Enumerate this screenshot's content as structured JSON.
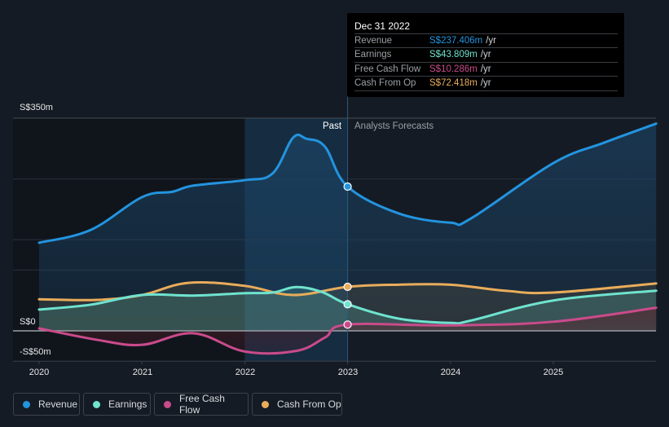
{
  "tooltip": {
    "date": "Dec 31 2022",
    "rows": [
      {
        "label": "Revenue",
        "value": "S$237.406m",
        "unit": "/yr",
        "color": "#2394df"
      },
      {
        "label": "Earnings",
        "value": "S$43.809m",
        "unit": "/yr",
        "color": "#6fe3cf"
      },
      {
        "label": "Free Cash Flow",
        "value": "S$10.286m",
        "unit": "/yr",
        "color": "#c94b8b"
      },
      {
        "label": "Cash From Op",
        "value": "S$72.418m",
        "unit": "/yr",
        "color": "#e9ac5b"
      }
    ]
  },
  "sections": {
    "past": "Past",
    "forecast": "Analysts Forecasts"
  },
  "legend": [
    {
      "label": "Revenue",
      "color": "#2394df"
    },
    {
      "label": "Earnings",
      "color": "#6fe3cf"
    },
    {
      "label": "Free Cash Flow",
      "color": "#c94b8b"
    },
    {
      "label": "Cash From Op",
      "color": "#e9ac5b"
    }
  ],
  "chart_data": {
    "type": "line",
    "title": "",
    "xlabel": "",
    "ylabel": "",
    "currency": "S$",
    "units": "m",
    "y_tick_labels": [
      "S$350m",
      "S$0",
      "-S$50m"
    ],
    "y_ticks": [
      350,
      0,
      -50
    ],
    "ylim": [
      -50,
      350
    ],
    "xlim": [
      2020,
      2026
    ],
    "x_tick_labels": [
      "2020",
      "2021",
      "2022",
      "2023",
      "2024",
      "2025"
    ],
    "x_ticks": [
      2020,
      2021,
      2022,
      2023,
      2024,
      2025
    ],
    "past_forecast_split": 2023,
    "highlight_start": 2022,
    "highlight_x": 2023,
    "grid": true,
    "legend_position": "bottom-left",
    "series": [
      {
        "name": "Revenue",
        "color": "#2394df",
        "x": [
          2020,
          2020.5,
          2021,
          2021.3,
          2021.5,
          2022,
          2022.27,
          2022.47,
          2022.6,
          2022.78,
          2023,
          2023.5,
          2024,
          2024.2,
          2025,
          2025.5,
          2026
        ],
        "y": [
          145,
          166,
          220,
          229,
          239,
          248,
          259,
          318,
          316,
          303,
          237.4,
          193,
          178,
          185,
          276,
          310,
          341
        ]
      },
      {
        "name": "Earnings",
        "color": "#6fe3cf",
        "x": [
          2020,
          2020.5,
          2021,
          2021.5,
          2022,
          2022.27,
          2022.5,
          2022.75,
          2023,
          2023.5,
          2024,
          2024.2,
          2025,
          2026
        ],
        "y": [
          35,
          43,
          59,
          58,
          62,
          63,
          72,
          64,
          43.8,
          20,
          13,
          17,
          50,
          66
        ]
      },
      {
        "name": "Free Cash Flow",
        "color": "#c94b8b",
        "x": [
          2020,
          2020.57,
          2021,
          2021.5,
          2022,
          2022.5,
          2022.78,
          2023,
          2024,
          2025,
          2026
        ],
        "y": [
          4,
          -15,
          -23,
          -4,
          -34,
          -33,
          -11,
          10.3,
          9,
          15,
          38
        ]
      },
      {
        "name": "Cash From Op",
        "color": "#e9ac5b",
        "x": [
          2020,
          2020.57,
          2021,
          2021.45,
          2022,
          2022.47,
          2023,
          2023.5,
          2024,
          2024.53,
          2025,
          2026
        ],
        "y": [
          52,
          51,
          59,
          79,
          74,
          59,
          72.4,
          76,
          76,
          66,
          63,
          78
        ]
      }
    ]
  }
}
